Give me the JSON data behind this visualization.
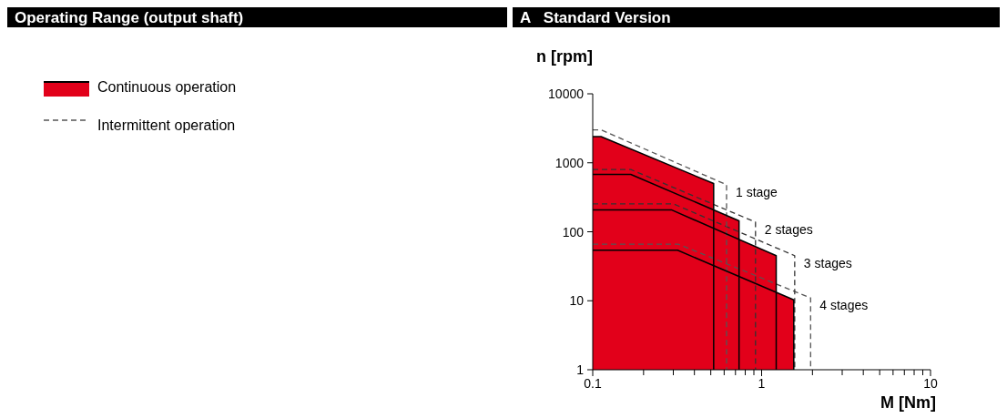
{
  "chart_data": {
    "type": "area",
    "title": "Operating Range (output shaft)",
    "subtitle": "A   Standard Version",
    "xlabel": "M [Nm]",
    "ylabel": "n [rpm]",
    "log": "xy",
    "grid": false,
    "legend": "left",
    "line_style": "solid",
    "xlim": [
      0.1,
      10
    ],
    "ylim": [
      1,
      10000
    ],
    "xticks": [
      0.1,
      {
        "value": 0.2,
        "label": null
      },
      {
        "value": 0.3,
        "label": null
      },
      {
        "value": 0.4,
        "label": null
      },
      {
        "value": 0.5,
        "label": null
      },
      {
        "value": 0.6,
        "label": null
      },
      {
        "value": 0.7,
        "label": null
      },
      {
        "value": 0.8,
        "label": null
      },
      {
        "value": 0.9,
        "label": null
      },
      1,
      {
        "value": 2,
        "label": null
      },
      {
        "value": 3,
        "label": null
      },
      {
        "value": 4,
        "label": null
      },
      {
        "value": 5,
        "label": null
      },
      {
        "value": 6,
        "label": null
      },
      {
        "value": 7,
        "label": null
      },
      {
        "value": 8,
        "label": null
      },
      {
        "value": 9,
        "label": null
      },
      10
    ],
    "yticks": [
      1,
      10,
      100,
      1000,
      10000
    ],
    "series": [
      {
        "name": "Continuous operation",
        "color": "#e2001a",
        "x": [
          0.1,
          0.112,
          0.52,
          0.52
        ],
        "values": [
          2400,
          2400,
          500,
          1
        ]
      },
      {
        "color": "#e2001a",
        "x": [
          0.1,
          0.168,
          0.735,
          0.735
        ],
        "values": [
          680,
          680,
          144,
          1
        ]
      },
      {
        "color": "#e2001a",
        "x": [
          0.1,
          0.292,
          1.22,
          1.22
        ],
        "values": [
          208,
          208,
          45,
          1
        ]
      },
      {
        "color": "#e2001a",
        "x": [
          0.1,
          0.318,
          1.55,
          1.55
        ],
        "values": [
          54,
          54,
          10.3,
          1
        ]
      },
      {
        "name": "Intermittent operation",
        "type": "line",
        "line_style": "dashed",
        "color": "#555555",
        "x": [
          0.1,
          0.112,
          0.62,
          0.62
        ],
        "values": [
          3000,
          3000,
          480,
          1
        ]
      },
      {
        "type": "line",
        "line_style": "dashed",
        "color": "#333333",
        "x": [
          0.1,
          0.168,
          0.92,
          0.92
        ],
        "values": [
          800,
          800,
          138,
          1
        ]
      },
      {
        "type": "line",
        "line_style": "dashed",
        "color": "#333333",
        "x": [
          0.1,
          0.3,
          1.57,
          1.57
        ],
        "values": [
          254,
          254,
          45,
          1
        ]
      },
      {
        "type": "line",
        "line_style": "dashed",
        "color": "#555555",
        "x": [
          0.1,
          0.321,
          1.95,
          1.95
        ],
        "values": [
          66,
          66,
          11,
          1
        ]
      }
    ],
    "annotations": [
      "1 stage",
      "2 stages",
      "3 stages",
      "4 stages"
    ]
  }
}
